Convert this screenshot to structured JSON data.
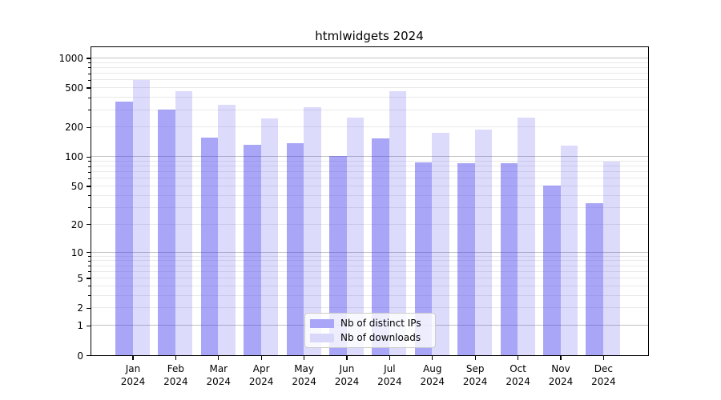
{
  "title": "htmlwidgets 2024",
  "chart_data": {
    "type": "bar",
    "title": "htmlwidgets 2024",
    "xlabel": "",
    "ylabel": "",
    "categories": [
      "Jan 2024",
      "Feb 2024",
      "Mar 2024",
      "Apr 2024",
      "May 2024",
      "Jun 2024",
      "Jul 2024",
      "Aug 2024",
      "Sep 2024",
      "Oct 2024",
      "Nov 2024",
      "Dec 2024"
    ],
    "series": [
      {
        "name": "Nb of distinct IPs",
        "color": "rgba(64,57,237,0.45)",
        "legend_color": "#a9a6f7",
        "values": [
          365,
          300,
          155,
          131,
          138,
          101,
          152,
          88,
          85,
          85,
          51,
          33
        ]
      },
      {
        "name": "Nb of downloads",
        "color": "rgba(64,57,237,0.18)",
        "legend_color": "#d9d8fa",
        "values": [
          600,
          463,
          337,
          246,
          320,
          248,
          463,
          176,
          188,
          251,
          130,
          89
        ]
      }
    ],
    "yscale": "log1p",
    "ylim": [
      0,
      1285
    ],
    "ytick_labels": [
      1000,
      500,
      200,
      100,
      50,
      20,
      10,
      5,
      2,
      1,
      0
    ],
    "major_gridlines": [
      1,
      10,
      100,
      1000
    ],
    "minor_gridlines": [
      2,
      3,
      4,
      5,
      6,
      7,
      8,
      9,
      20,
      30,
      40,
      50,
      60,
      70,
      80,
      90,
      200,
      300,
      400,
      500,
      600,
      700,
      800,
      900
    ],
    "grid": true,
    "legend_position": "lower center",
    "legend_entries": [
      "Nb of distinct IPs",
      "Nb of downloads"
    ]
  },
  "colors": {
    "bar_dark": "#a9a6f7",
    "bar_light": "#d9d8fa",
    "grid_major": "#c2c2c2",
    "grid_minor": "#e9e9e9",
    "spine": "#000000",
    "legend_border": "#cccccc"
  }
}
